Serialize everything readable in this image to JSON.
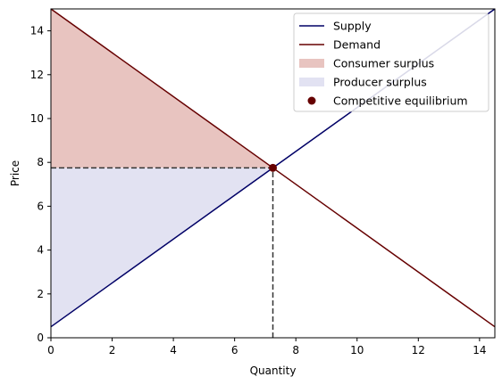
{
  "chart_data": {
    "type": "line",
    "xlabel": "Quantity",
    "ylabel": "Price",
    "xlim": [
      0,
      14.5
    ],
    "ylim": [
      0,
      15
    ],
    "xticks": [
      0,
      2,
      4,
      6,
      8,
      10,
      12,
      14
    ],
    "yticks": [
      0,
      2,
      4,
      6,
      8,
      10,
      12,
      14
    ],
    "grid": false,
    "legend_position": "top-right",
    "series": [
      {
        "name": "Supply",
        "kind": "line",
        "color": "#000066",
        "x": [
          0,
          14.5
        ],
        "y": [
          0.5,
          15.0
        ]
      },
      {
        "name": "Demand",
        "kind": "line",
        "color": "#660000",
        "x": [
          0,
          14.5
        ],
        "y": [
          15.0,
          0.5
        ]
      },
      {
        "name": "Consumer surplus",
        "kind": "area",
        "color": "#e8c4c0",
        "points": [
          [
            0,
            15.0
          ],
          [
            0,
            7.75
          ],
          [
            7.25,
            7.75
          ]
        ]
      },
      {
        "name": "Producer surplus",
        "kind": "area",
        "color": "#e2e2f2",
        "points": [
          [
            0,
            0.5
          ],
          [
            0,
            7.75
          ],
          [
            7.25,
            7.75
          ]
        ]
      },
      {
        "name": "Competitive equilibrium",
        "kind": "scatter",
        "color": "#660000",
        "x": [
          7.25
        ],
        "y": [
          7.75
        ]
      }
    ],
    "reference_lines": [
      {
        "from": [
          0,
          7.75
        ],
        "to": [
          7.25,
          7.75
        ],
        "style": "dashed",
        "color": "#333333"
      },
      {
        "from": [
          7.25,
          0
        ],
        "to": [
          7.25,
          7.75
        ],
        "style": "dashed",
        "color": "#333333"
      }
    ]
  }
}
